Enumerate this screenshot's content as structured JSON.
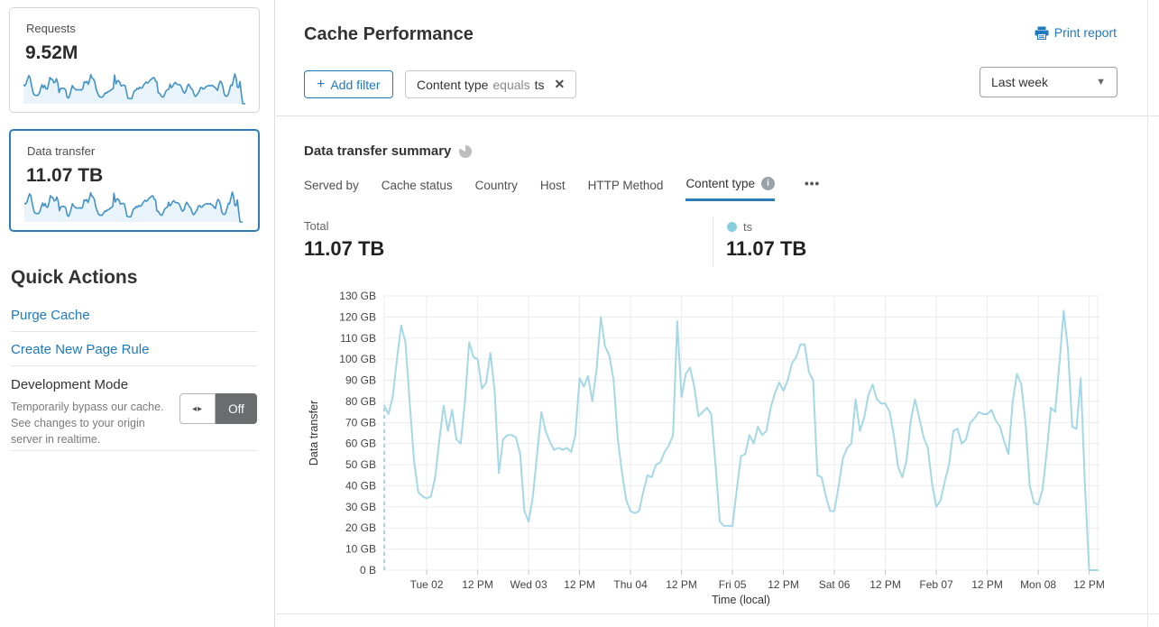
{
  "colors": {
    "accent_link_blue": "#1e79bd",
    "selected_card_border": "#2e7cb8",
    "tab_underline": "#2c7cb5",
    "sparkline_stroke": "#4193c8",
    "sparkline_fill": "#e9f3fa",
    "chart_line": "#a5d8e6",
    "legend_dot": "#89cede",
    "toggle_off_bg": "#696d70",
    "gridline": "#ececec"
  },
  "sidebar": {
    "cards": [
      {
        "label": "Requests",
        "value": "9.52M",
        "selected": false
      },
      {
        "label": "Data transfer",
        "value": "11.07 TB",
        "selected": true
      }
    ],
    "quick_actions": {
      "title": "Quick Actions",
      "links": [
        {
          "label": "Purge Cache"
        },
        {
          "label": "Create New Page Rule"
        }
      ],
      "dev_mode": {
        "title": "Development Mode",
        "description": "Temporarily bypass our cache. See changes to your origin server in realtime.",
        "state_label": "Off",
        "toggle_icon": "◂▸"
      }
    }
  },
  "header": {
    "title": "Cache Performance",
    "print_label": "Print report",
    "add_filter": {
      "icon": "+",
      "label": "Add filter"
    },
    "filter_chip": {
      "field": "Content type",
      "operator": "equals",
      "value": "ts",
      "close_icon": "✕"
    },
    "time_range": {
      "selected": "Last week",
      "caret_icon": "▼"
    }
  },
  "summary": {
    "title": "Data transfer summary",
    "tabs": [
      {
        "label": "Served by",
        "active": false
      },
      {
        "label": "Cache status",
        "active": false
      },
      {
        "label": "Country",
        "active": false
      },
      {
        "label": "Host",
        "active": false
      },
      {
        "label": "HTTP Method",
        "active": false
      },
      {
        "label": "Content type",
        "active": true,
        "info_glyph": "i"
      }
    ],
    "more_icon": "•••",
    "total": {
      "label": "Total",
      "value": "11.07 TB"
    },
    "legend": {
      "name": "ts",
      "value": "11.07 TB",
      "color": "#89cede"
    }
  },
  "chart_data": {
    "type": "line",
    "title": "Data transfer summary — ts",
    "xlabel": "Time (local)",
    "ylabel": "Data transfer",
    "x_unit": "hour offset across the last week",
    "y_unit": "GB",
    "ylim": [
      0,
      130
    ],
    "xlim_hours": [
      0,
      168
    ],
    "grid": true,
    "leading_dashed_segment": true,
    "y_ticks": [
      "0 B",
      "10 GB",
      "20 GB",
      "30 GB",
      "40 GB",
      "50 GB",
      "60 GB",
      "70 GB",
      "80 GB",
      "90 GB",
      "100 GB",
      "110 GB",
      "120 GB",
      "130 GB"
    ],
    "x_ticks": [
      {
        "hour": 10,
        "label": "Tue 02"
      },
      {
        "hour": 22,
        "label": "12 PM"
      },
      {
        "hour": 34,
        "label": "Wed 03"
      },
      {
        "hour": 46,
        "label": "12 PM"
      },
      {
        "hour": 58,
        "label": "Thu 04"
      },
      {
        "hour": 70,
        "label": "12 PM"
      },
      {
        "hour": 82,
        "label": "Fri 05"
      },
      {
        "hour": 94,
        "label": "12 PM"
      },
      {
        "hour": 106,
        "label": "Sat 06"
      },
      {
        "hour": 118,
        "label": "12 PM"
      },
      {
        "hour": 130,
        "label": "Feb 07"
      },
      {
        "hour": 142,
        "label": "12 PM"
      },
      {
        "hour": 154,
        "label": "Mon 08"
      },
      {
        "hour": 166,
        "label": "12 PM"
      }
    ],
    "series": [
      {
        "name": "ts",
        "color": "#a5d8e6",
        "unit": "GB",
        "values": [
          78,
          74,
          82,
          100,
          116,
          108,
          79,
          52,
          37,
          35,
          34,
          35,
          44,
          62,
          78,
          66,
          76,
          62,
          60,
          80,
          108,
          101,
          100,
          86,
          89,
          103,
          85,
          46,
          62,
          64,
          64,
          63,
          55,
          28,
          23,
          35,
          55,
          75,
          66,
          61,
          57,
          58,
          57,
          58,
          56,
          64,
          91,
          87,
          92,
          80,
          95,
          120,
          106,
          102,
          90,
          62,
          46,
          33,
          28,
          27,
          28,
          37,
          45,
          44,
          50,
          51,
          56,
          59,
          64,
          118,
          82,
          93,
          96,
          87,
          73,
          75,
          77,
          74,
          50,
          23,
          21,
          21,
          21,
          38,
          54,
          55,
          64,
          60,
          68,
          64,
          66,
          77,
          84,
          89,
          85,
          90,
          98,
          101,
          107,
          107,
          94,
          90,
          45,
          44,
          35,
          28,
          28,
          40,
          53,
          58,
          60,
          81,
          66,
          72,
          83,
          88,
          81,
          79,
          79,
          75,
          64,
          49,
          44,
          52,
          71,
          81,
          72,
          63,
          58,
          41,
          30,
          33,
          42,
          50,
          66,
          67,
          60,
          62,
          70,
          72,
          75,
          74,
          74,
          76,
          71,
          68,
          61,
          55,
          80,
          93,
          88,
          70,
          40,
          32,
          31,
          38,
          56,
          77,
          75,
          98,
          123,
          105,
          68,
          67,
          91,
          40,
          0,
          0,
          0
        ]
      }
    ]
  }
}
